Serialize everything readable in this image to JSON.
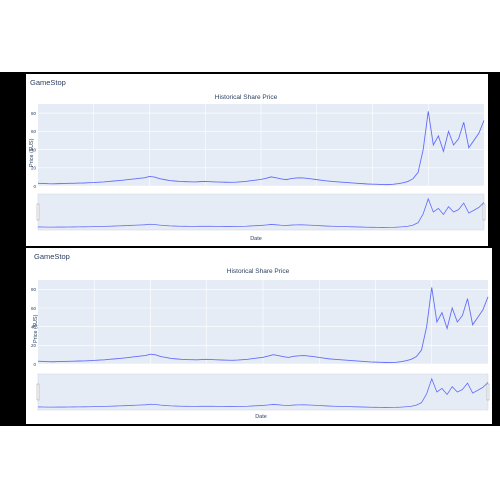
{
  "company": "GameStop",
  "chart_title": "Historical Share Price",
  "ylabel": "Price ($US)",
  "xlabel": "Date",
  "colors": {
    "line": "#636efa",
    "plot_bg": "#e5ecf6",
    "grid": "#ffffff",
    "text": "#2a3f5f"
  },
  "chart_data": [
    {
      "type": "line",
      "title": "Historical Share Price",
      "xlabel": "Date",
      "ylabel": "Price ($US)",
      "ylim": [
        0,
        90
      ],
      "yticks": [
        0,
        20,
        40,
        60,
        80
      ],
      "grid": true,
      "rangeslider": true,
      "series": [
        {
          "values": [
            3,
            2.8,
            2.5,
            2.4,
            2.6,
            2.7,
            2.9,
            3.0,
            3.2,
            3.3,
            3.6,
            3.8,
            4.2,
            4.5,
            5.0,
            5.5,
            6.0,
            6.5,
            7.2,
            7.8,
            8.5,
            9.0,
            10.5,
            9.8,
            8.0,
            7.0,
            6.0,
            5.5,
            5.0,
            4.8,
            4.6,
            4.5,
            4.8,
            5.0,
            4.7,
            4.5,
            4.3,
            4.1,
            4.0,
            4.2,
            4.6,
            5.0,
            5.8,
            6.5,
            7.2,
            8.5,
            10.0,
            9.0,
            7.8,
            7.0,
            8.2,
            8.8,
            9.0,
            8.5,
            7.8,
            7.0,
            6.2,
            5.5,
            5.0,
            4.6,
            4.2,
            3.8,
            3.4,
            3.0,
            2.6,
            2.2,
            2.0,
            1.8,
            1.6,
            1.5,
            1.8,
            2.5,
            3.5,
            5.0,
            8.0,
            15.0,
            40.0,
            82.0,
            45.0,
            55.0,
            38.0,
            60.0,
            45.0,
            52.0,
            70.0,
            42.0,
            50.0,
            58.0,
            72.0
          ]
        }
      ]
    },
    {
      "type": "line",
      "title": "Historical Share Price",
      "xlabel": "Date",
      "ylabel": "Price ($US)",
      "ylim": [
        0,
        90
      ],
      "yticks": [
        0,
        20,
        40,
        60,
        80
      ],
      "grid": true,
      "rangeslider": true,
      "series": [
        {
          "values": [
            3,
            2.8,
            2.5,
            2.4,
            2.6,
            2.7,
            2.9,
            3.0,
            3.2,
            3.3,
            3.6,
            3.8,
            4.2,
            4.5,
            5.0,
            5.5,
            6.0,
            6.5,
            7.2,
            7.8,
            8.5,
            9.0,
            10.5,
            9.8,
            8.0,
            7.0,
            6.0,
            5.5,
            5.0,
            4.8,
            4.6,
            4.5,
            4.8,
            5.0,
            4.7,
            4.5,
            4.3,
            4.1,
            4.0,
            4.2,
            4.6,
            5.0,
            5.8,
            6.5,
            7.2,
            8.5,
            10.0,
            9.0,
            7.8,
            7.0,
            8.2,
            8.8,
            9.0,
            8.5,
            7.8,
            7.0,
            6.2,
            5.5,
            5.0,
            4.6,
            4.2,
            3.8,
            3.4,
            3.0,
            2.6,
            2.2,
            2.0,
            1.8,
            1.6,
            1.5,
            1.8,
            2.5,
            3.5,
            5.0,
            8.0,
            15.0,
            40.0,
            82.0,
            45.0,
            55.0,
            38.0,
            60.0,
            45.0,
            52.0,
            70.0,
            42.0,
            50.0,
            58.0,
            72.0
          ]
        }
      ]
    }
  ]
}
